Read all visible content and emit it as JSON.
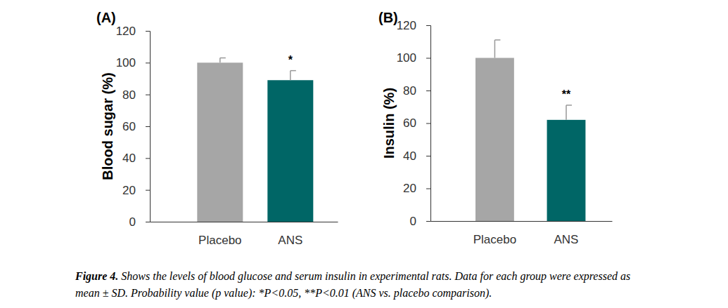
{
  "chart_data": [
    {
      "type": "bar",
      "title": "(A)",
      "y_label": "Blood sugar (%)",
      "categories": [
        "Placebo",
        "ANS"
      ],
      "values": [
        100,
        89
      ],
      "errors": [
        3,
        6
      ],
      "colors": [
        "#a6a6a6",
        "#006666"
      ],
      "ylim": [
        0,
        120
      ],
      "yticks": [
        0,
        20,
        40,
        60,
        80,
        100,
        120
      ],
      "grid": false,
      "annotations": [
        {
          "text": "*",
          "x": "ANS"
        }
      ]
    },
    {
      "type": "bar",
      "title": "(B)",
      "y_label": "Insulin (%)",
      "categories": [
        "Placebo",
        "ANS"
      ],
      "values": [
        100,
        62
      ],
      "errors": [
        11,
        9
      ],
      "colors": [
        "#a6a6a6",
        "#006666"
      ],
      "ylim": [
        0,
        120
      ],
      "yticks": [
        0,
        20,
        40,
        60,
        80,
        100,
        120
      ],
      "grid": false,
      "annotations": [
        {
          "text": "**",
          "x": "ANS"
        }
      ]
    }
  ],
  "caption": {
    "label": "Figure 4.",
    "lines": [
      "Shows the levels of blood glucose and serum insulin in experimental rats. Data for each group were expressed as",
      "mean ± SD. Probability value (p value): *P<0.05, **P<0.01 (ANS vs. placebo comparison)."
    ]
  }
}
